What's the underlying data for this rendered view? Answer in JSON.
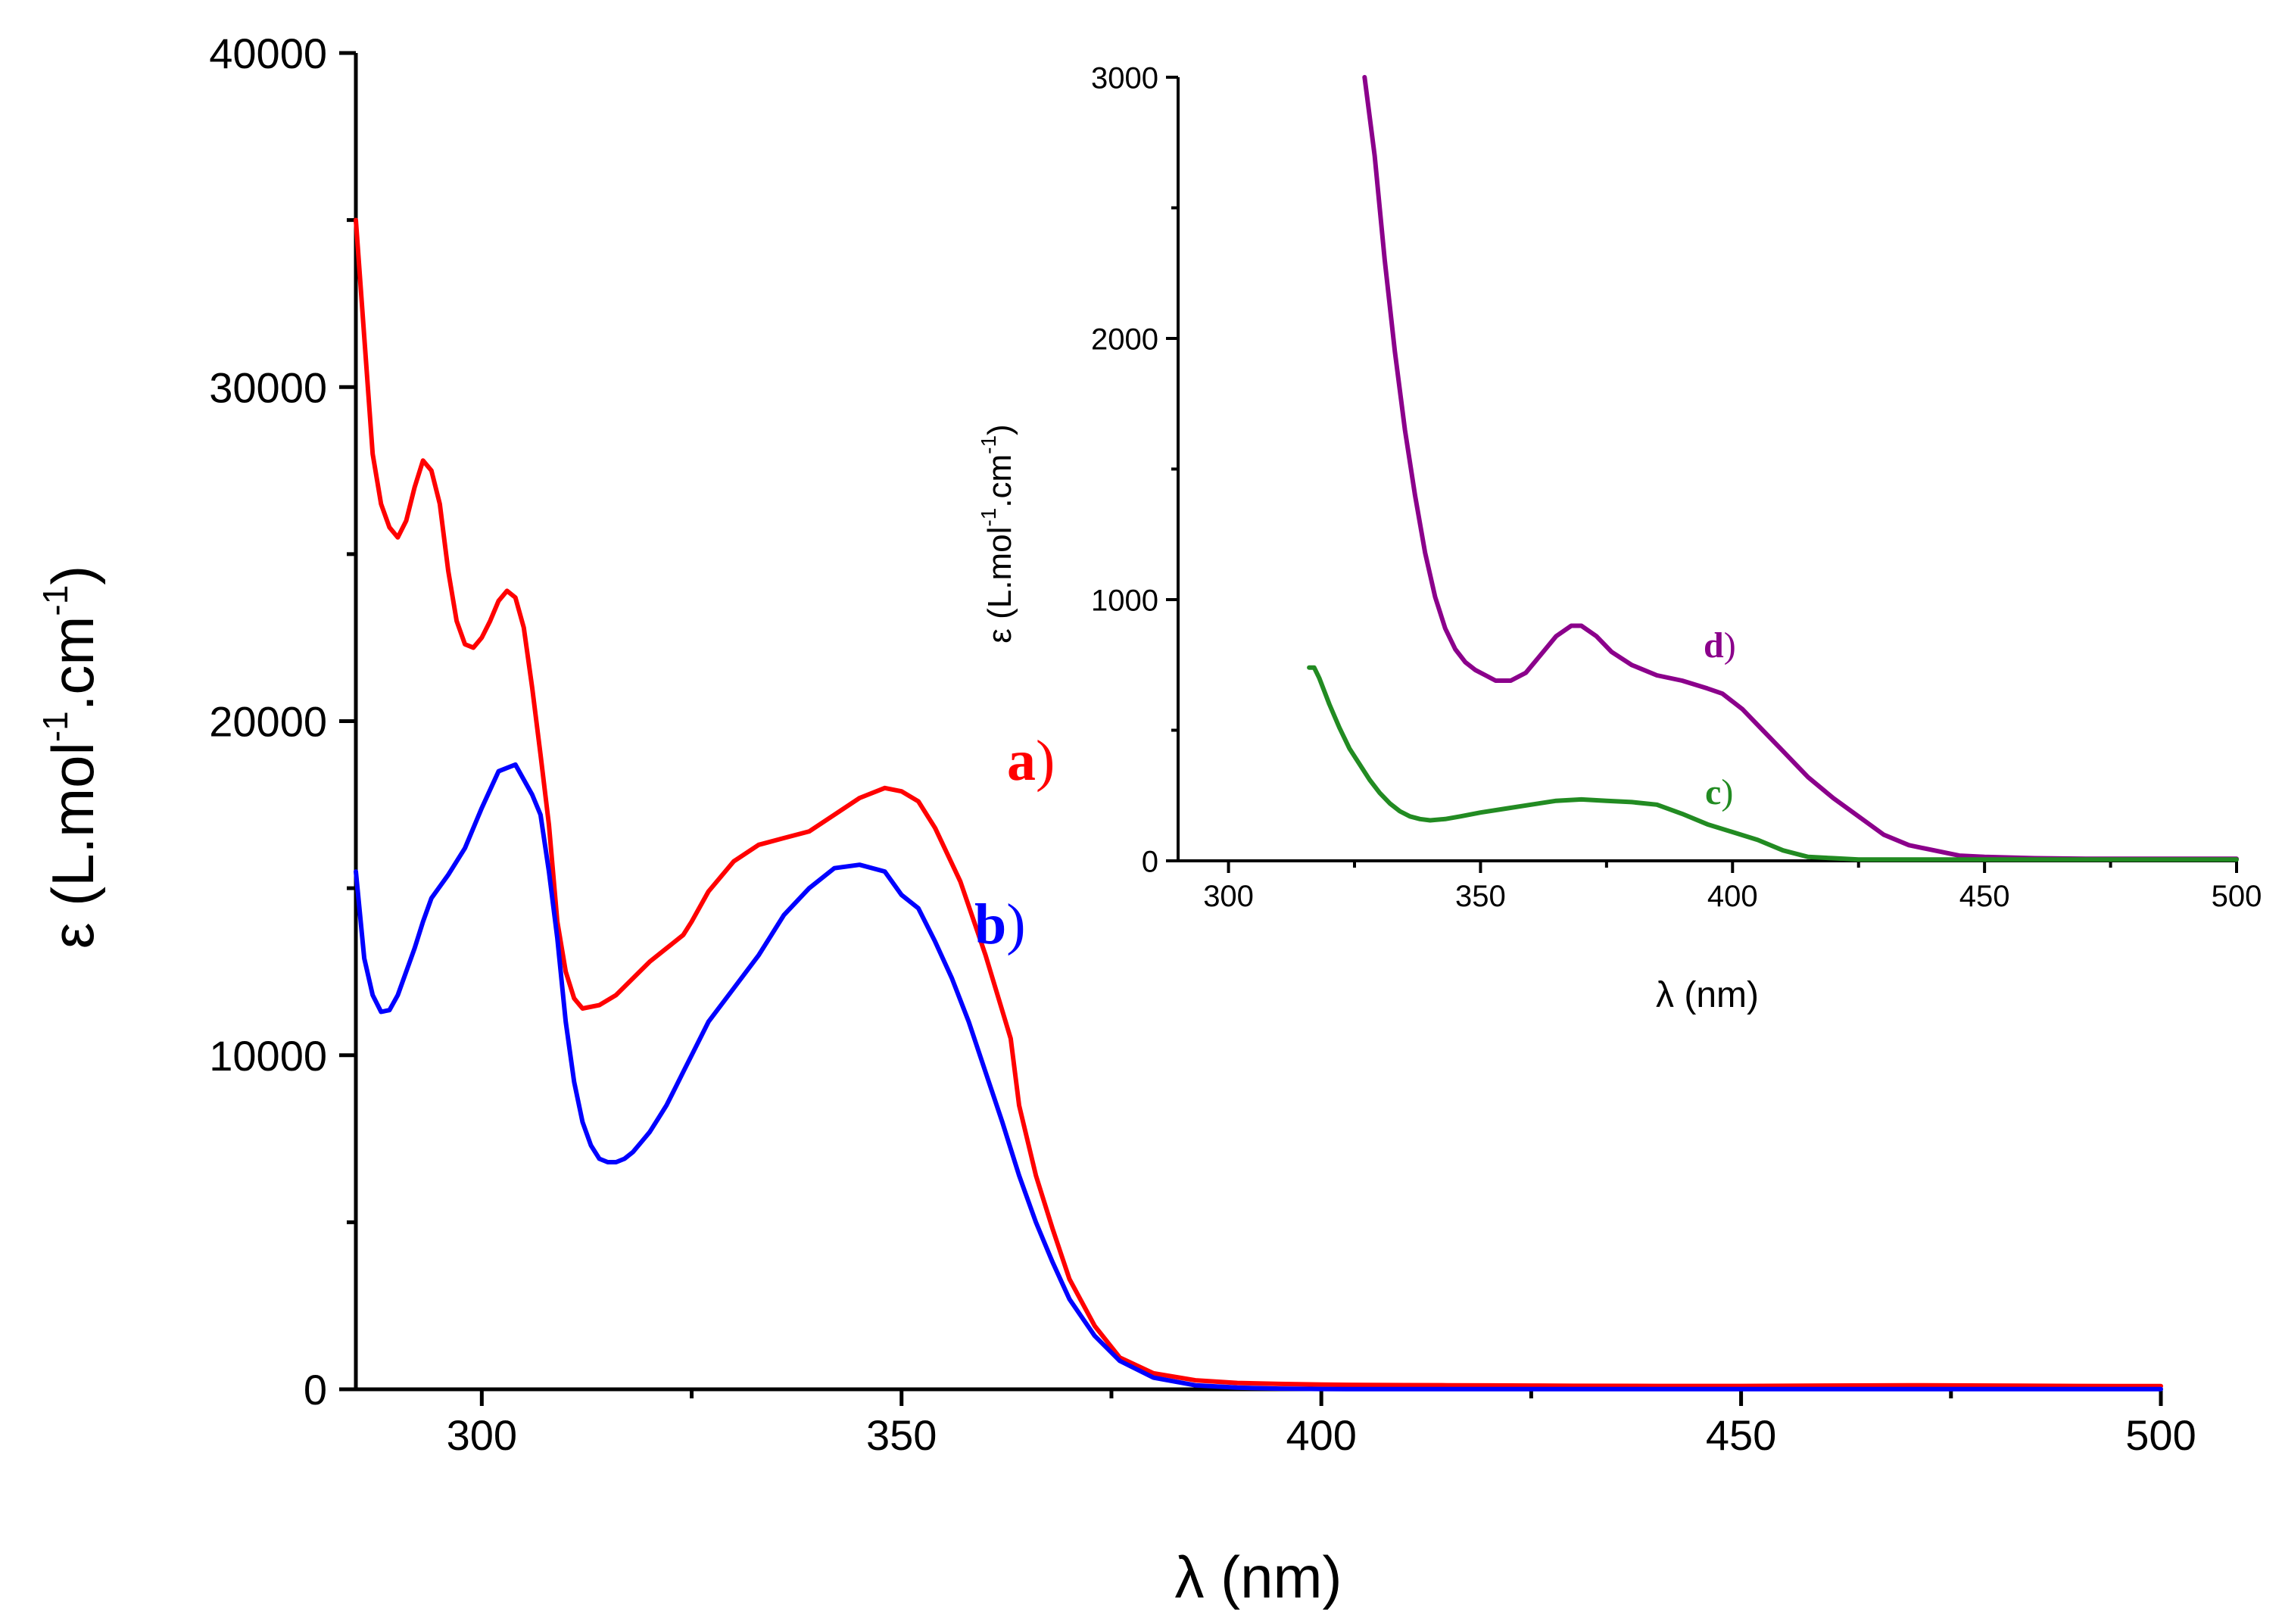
{
  "chart_data": [
    {
      "id": "main",
      "type": "line",
      "title": "",
      "xlabel": "λ (nm)",
      "ylabel_parts": [
        "ε (L.mol",
        "-1",
        ".cm",
        "-1",
        ")"
      ],
      "xlim": [
        285,
        500
      ],
      "ylim": [
        0,
        40000
      ],
      "xticks": [
        300,
        350,
        400,
        450,
        500
      ],
      "xtick_labels": [
        "300",
        "350",
        "400",
        "450",
        "500"
      ],
      "yticks": [
        0,
        10000,
        20000,
        30000,
        40000
      ],
      "ytick_labels": [
        "0",
        "10000",
        "20000",
        "30000",
        "40000"
      ],
      "series": [
        {
          "name": "a)",
          "color": "#ff0000",
          "x": [
            285,
            286,
            287,
            288,
            289,
            290,
            291,
            292,
            293,
            294,
            295,
            296,
            297,
            298,
            299,
            300,
            301,
            302,
            303,
            304,
            305,
            306,
            307,
            308,
            309,
            310,
            311,
            312,
            314,
            316,
            318,
            320,
            322,
            324,
            325,
            327,
            330,
            333,
            336,
            339,
            342,
            345,
            348,
            350,
            352,
            354,
            357,
            360,
            363,
            364,
            366,
            368,
            370,
            373,
            376,
            380,
            385,
            390,
            395,
            400,
            405,
            410,
            415,
            420,
            425,
            430,
            440,
            450,
            460,
            470,
            480,
            490,
            500
          ],
          "y": [
            35000,
            31500,
            28000,
            26500,
            25800,
            25500,
            26000,
            27000,
            27800,
            27500,
            26500,
            24500,
            23000,
            22300,
            22200,
            22500,
            23000,
            23600,
            23900,
            23700,
            22800,
            21000,
            19000,
            16900,
            14000,
            12500,
            11700,
            11400,
            11500,
            11800,
            12300,
            12800,
            13200,
            13600,
            14000,
            14900,
            15800,
            16300,
            16500,
            16700,
            17200,
            17700,
            18000,
            17900,
            17600,
            16800,
            15200,
            13000,
            10500,
            8500,
            6400,
            4800,
            3300,
            1900,
            950,
            480,
            270,
            190,
            160,
            140,
            130,
            125,
            120,
            115,
            110,
            105,
            100,
            100,
            110,
            120,
            110,
            100,
            95
          ]
        },
        {
          "name": "b)",
          "color": "#0000ff",
          "x": [
            285,
            286,
            287,
            288,
            289,
            290,
            291,
            292,
            293,
            294,
            296,
            298,
            300,
            302,
            304,
            306,
            307,
            308,
            309,
            310,
            311,
            312,
            313,
            314,
            315,
            316,
            317,
            318,
            319,
            320,
            321,
            322,
            323,
            324,
            325,
            327,
            330,
            333,
            336,
            339,
            342,
            345,
            348,
            350,
            352,
            354,
            356,
            358,
            360,
            362,
            364,
            366,
            368,
            370,
            373,
            376,
            380,
            385,
            390,
            395,
            400,
            405,
            410,
            415,
            420,
            425,
            430,
            450,
            475,
            500
          ],
          "y": [
            15500,
            12900,
            11800,
            11300,
            11350,
            11800,
            12500,
            13200,
            14000,
            14700,
            15400,
            16200,
            17400,
            18500,
            18700,
            17800,
            17200,
            15500,
            13500,
            11000,
            9200,
            8000,
            7300,
            6900,
            6800,
            6800,
            6900,
            7100,
            7400,
            7700,
            8100,
            8500,
            9000,
            9500,
            10000,
            11000,
            12000,
            13000,
            14200,
            15000,
            15600,
            15700,
            15500,
            14800,
            14400,
            13400,
            12300,
            11000,
            9500,
            8000,
            6400,
            5000,
            3800,
            2700,
            1600,
            850,
            350,
            120,
            50,
            20,
            10,
            5,
            5,
            5,
            5,
            5,
            5,
            5,
            5,
            5
          ]
        }
      ],
      "annotations": [
        {
          "text": "a",
          "paren": ")",
          "series": "a)",
          "at": [
            364,
            18300
          ]
        },
        {
          "text": "b",
          "paren": ")",
          "series": "b)",
          "at": [
            361,
            13300
          ]
        }
      ]
    },
    {
      "id": "inset",
      "type": "line",
      "title": "",
      "xlabel": "λ (nm)",
      "ylabel_parts": [
        "ε (L.mol",
        "-1",
        ".cm",
        "-1",
        ")"
      ],
      "xlim": [
        290,
        500
      ],
      "ylim": [
        0,
        3000
      ],
      "xticks": [
        300,
        350,
        400,
        450,
        500
      ],
      "xtick_labels": [
        "300",
        "350",
        "400",
        "450",
        "500"
      ],
      "yticks": [
        0,
        1000,
        2000,
        3000
      ],
      "ytick_labels": [
        "0",
        "1000",
        "2000",
        "3000"
      ],
      "series": [
        {
          "name": "d)",
          "color": "#8b008b",
          "x": [
            327,
            329,
            331,
            333,
            335,
            337,
            339,
            341,
            343,
            345,
            347,
            349,
            351,
            353,
            356,
            359,
            362,
            365,
            368,
            370,
            373,
            376,
            380,
            385,
            390,
            395,
            398,
            402,
            406,
            410,
            415,
            420,
            425,
            430,
            435,
            440,
            445,
            450,
            460,
            470,
            480,
            490,
            500
          ],
          "y": [
            3000,
            2700,
            2300,
            1950,
            1650,
            1400,
            1180,
            1010,
            890,
            810,
            760,
            730,
            710,
            690,
            690,
            720,
            790,
            860,
            900,
            900,
            860,
            800,
            750,
            710,
            690,
            660,
            640,
            580,
            500,
            420,
            320,
            240,
            170,
            100,
            60,
            40,
            20,
            15,
            10,
            8,
            8,
            8,
            8
          ]
        },
        {
          "name": "c)",
          "color": "#228b22",
          "x": [
            316,
            317,
            318,
            319,
            320,
            322,
            324,
            326,
            328,
            330,
            332,
            334,
            336,
            338,
            340,
            343,
            346,
            350,
            355,
            360,
            365,
            370,
            375,
            380,
            385,
            390,
            395,
            400,
            405,
            410,
            415,
            420,
            425,
            430,
            440,
            450,
            460,
            470,
            480,
            490,
            500
          ],
          "y": [
            740,
            740,
            700,
            650,
            600,
            510,
            430,
            370,
            310,
            260,
            220,
            190,
            170,
            160,
            155,
            160,
            170,
            185,
            200,
            215,
            230,
            235,
            230,
            225,
            215,
            180,
            140,
            110,
            80,
            40,
            15,
            10,
            5,
            5,
            5,
            5,
            5,
            5,
            5,
            5,
            5
          ]
        }
      ],
      "annotations": [
        {
          "text": "d",
          "paren": ")",
          "series": "d)",
          "at": [
            394,
            800
          ]
        },
        {
          "text": "c",
          "paren": ")",
          "series": "c)",
          "at": [
            394,
            250
          ]
        }
      ]
    }
  ]
}
